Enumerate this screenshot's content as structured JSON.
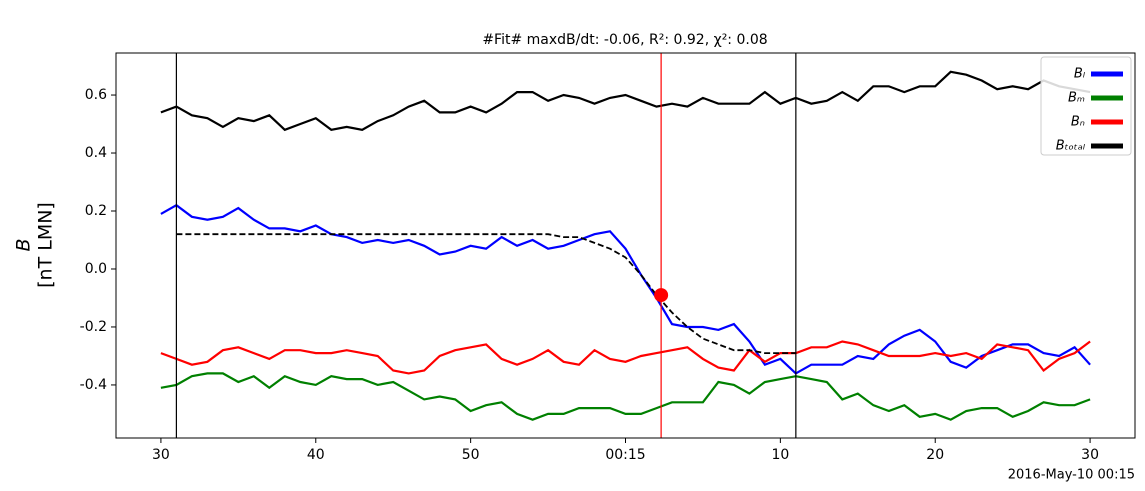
{
  "chart_data": {
    "type": "line",
    "title": "#Fit# maxdB/dt: -0.06, R²: 0.92, χ²: 0.08",
    "y_label": [
      "B",
      "[nT LMN]"
    ],
    "corner_label": "2016-May-10 00:15",
    "x": [
      30,
      31,
      32,
      33,
      34,
      35,
      36,
      37,
      38,
      39,
      40,
      41,
      42,
      43,
      44,
      45,
      46,
      47,
      48,
      49,
      50,
      51,
      52,
      53,
      54,
      55,
      56,
      57,
      58,
      59,
      60,
      61,
      62,
      63,
      64,
      65,
      66,
      67,
      68,
      69,
      70,
      71,
      72,
      73,
      74,
      75,
      76,
      77,
      78,
      79,
      80,
      81,
      82,
      83,
      84,
      85,
      86,
      87,
      88,
      89,
      90
    ],
    "xlim": [
      27.1,
      92.9
    ],
    "xticks": [
      30,
      40,
      50,
      {
        "value": 60,
        "label": "00:15"
      },
      {
        "value": 70,
        "label": "10"
      },
      {
        "value": 80,
        "label": "20"
      },
      {
        "value": 90,
        "label": "30"
      }
    ],
    "ylim": [
      -0.583,
      0.745
    ],
    "yticks": [
      -0.4,
      -0.2,
      {
        "value": 0,
        "label": "0.0"
      },
      0.2,
      0.4,
      0.6
    ],
    "grid": false,
    "legend": "upper right",
    "series": [
      {
        "name": "Bₗ",
        "color": "#0000ff",
        "values": [
          0.19,
          0.22,
          0.18,
          0.17,
          0.18,
          0.21,
          0.17,
          0.14,
          0.14,
          0.13,
          0.15,
          0.12,
          0.11,
          0.09,
          0.1,
          0.09,
          0.1,
          0.08,
          0.05,
          0.06,
          0.08,
          0.07,
          0.11,
          0.08,
          0.1,
          0.07,
          0.08,
          0.1,
          0.12,
          0.13,
          0.07,
          -0.02,
          -0.1,
          -0.19,
          -0.2,
          -0.2,
          -0.21,
          -0.19,
          -0.25,
          -0.33,
          -0.31,
          -0.36,
          -0.33,
          -0.33,
          -0.33,
          -0.3,
          -0.31,
          -0.26,
          -0.23,
          -0.21,
          -0.25,
          -0.32,
          -0.34,
          -0.3,
          -0.28,
          -0.26,
          -0.26,
          -0.29,
          -0.3,
          -0.27,
          -0.33
        ]
      },
      {
        "name": "Bₘ",
        "color": "#008000",
        "values": [
          -0.41,
          -0.4,
          -0.37,
          -0.36,
          -0.36,
          -0.39,
          -0.37,
          -0.41,
          -0.37,
          -0.39,
          -0.4,
          -0.37,
          -0.38,
          -0.38,
          -0.4,
          -0.39,
          -0.42,
          -0.45,
          -0.44,
          -0.45,
          -0.49,
          -0.47,
          -0.46,
          -0.5,
          -0.52,
          -0.5,
          -0.5,
          -0.48,
          -0.48,
          -0.48,
          -0.5,
          -0.5,
          -0.48,
          -0.46,
          -0.46,
          -0.46,
          -0.39,
          -0.4,
          -0.43,
          -0.39,
          -0.38,
          -0.37,
          -0.38,
          -0.39,
          -0.45,
          -0.43,
          -0.47,
          -0.49,
          -0.47,
          -0.51,
          -0.5,
          -0.52,
          -0.49,
          -0.48,
          -0.48,
          -0.51,
          -0.49,
          -0.46,
          -0.47,
          -0.47,
          -0.45
        ]
      },
      {
        "name": "Bₙ",
        "color": "#ff0000",
        "values": [
          -0.29,
          -0.31,
          -0.33,
          -0.32,
          -0.28,
          -0.27,
          -0.29,
          -0.31,
          -0.28,
          -0.28,
          -0.29,
          -0.29,
          -0.28,
          -0.29,
          -0.3,
          -0.35,
          -0.36,
          -0.35,
          -0.3,
          -0.28,
          -0.27,
          -0.26,
          -0.31,
          -0.33,
          -0.31,
          -0.28,
          -0.32,
          -0.33,
          -0.28,
          -0.31,
          -0.32,
          -0.3,
          -0.29,
          -0.28,
          -0.27,
          -0.31,
          -0.34,
          -0.35,
          -0.28,
          -0.32,
          -0.29,
          -0.29,
          -0.27,
          -0.27,
          -0.25,
          -0.26,
          -0.28,
          -0.3,
          -0.3,
          -0.3,
          -0.29,
          -0.3,
          -0.29,
          -0.31,
          -0.26,
          -0.27,
          -0.28,
          -0.35,
          -0.31,
          -0.29,
          -0.25
        ]
      },
      {
        "name": "Bₜₒₜₐₗ",
        "color": "#000000",
        "values": [
          0.54,
          0.56,
          0.53,
          0.52,
          0.49,
          0.52,
          0.51,
          0.53,
          0.48,
          0.5,
          0.52,
          0.48,
          0.49,
          0.48,
          0.51,
          0.53,
          0.56,
          0.58,
          0.54,
          0.54,
          0.56,
          0.54,
          0.57,
          0.61,
          0.61,
          0.58,
          0.6,
          0.59,
          0.57,
          0.59,
          0.6,
          0.58,
          0.56,
          0.57,
          0.56,
          0.59,
          0.57,
          0.57,
          0.57,
          0.61,
          0.57,
          0.59,
          0.57,
          0.58,
          0.61,
          0.58,
          0.63,
          0.63,
          0.61,
          0.63,
          0.63,
          0.68,
          0.67,
          0.65,
          0.62,
          0.63,
          0.62,
          0.65,
          0.63,
          0.62,
          0.61
        ]
      }
    ],
    "fit": {
      "color": "#000000",
      "style": "dashed",
      "x": [
        31,
        54,
        55,
        56,
        57,
        58,
        59,
        60,
        61,
        62,
        63,
        64,
        65,
        66,
        67,
        68,
        69,
        70,
        71
      ],
      "values": [
        0.12,
        0.12,
        0.12,
        0.11,
        0.11,
        0.09,
        0.07,
        0.04,
        -0.02,
        -0.09,
        -0.15,
        -0.2,
        -0.24,
        -0.26,
        -0.28,
        -0.28,
        -0.29,
        -0.29,
        -0.29
      ]
    },
    "marker": {
      "x": 62.3,
      "y": -0.09,
      "color": "#ff0000"
    },
    "vlines": [
      {
        "x": 31,
        "color": "#000000"
      },
      {
        "x": 62.3,
        "color": "#ff0000"
      },
      {
        "x": 71,
        "color": "#000000"
      }
    ]
  }
}
